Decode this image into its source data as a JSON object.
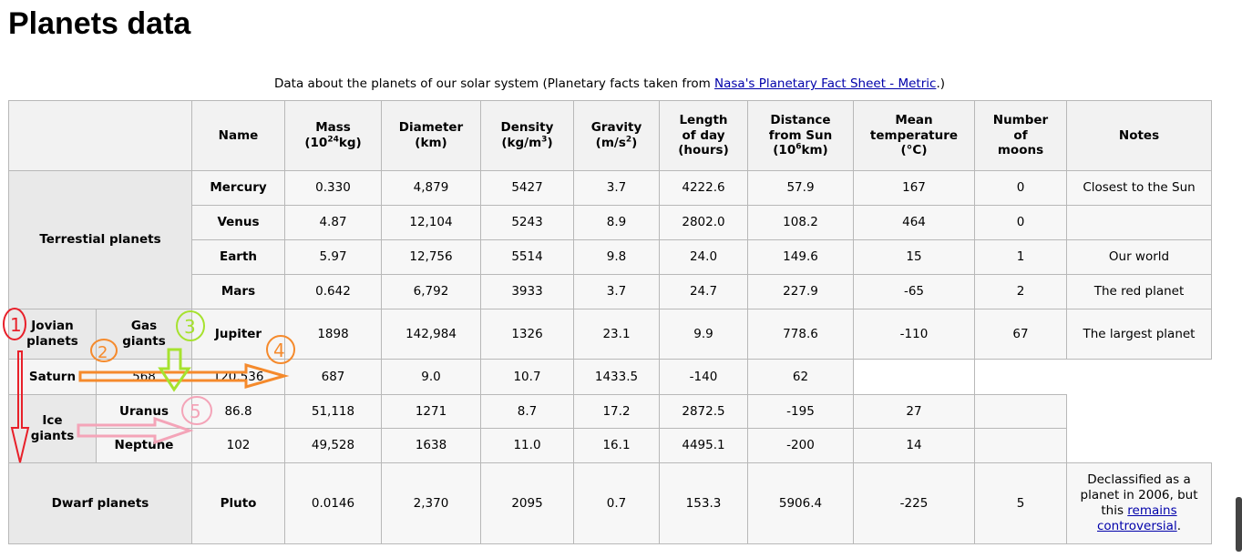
{
  "page": {
    "title": "Planets data",
    "caption_prefix": "Data about the planets of our solar system (Planetary facts taken from ",
    "caption_link": "Nasa's Planetary Fact Sheet - Metric",
    "caption_suffix": ".)"
  },
  "headers": {
    "name": "Name",
    "mass": "Mass",
    "mass_unit_a": "(10",
    "mass_unit_exp": "24",
    "mass_unit_b": "kg)",
    "diameter": "Diameter",
    "diameter_unit": "(km)",
    "density": "Density",
    "density_unit_a": "(kg/m",
    "density_unit_exp": "3",
    "density_unit_b": ")",
    "gravity": "Gravity",
    "gravity_unit_a": "(m/s",
    "gravity_unit_exp": "2",
    "gravity_unit_b": ")",
    "length_of_day_1": "Length",
    "length_of_day_2": "of day",
    "length_of_day_3": "(hours)",
    "distance_1": "Distance",
    "distance_2": "from Sun",
    "distance_unit_a": "(10",
    "distance_unit_exp": "6",
    "distance_unit_b": "km)",
    "mean_temp_1": "Mean",
    "mean_temp_2": "temperature",
    "mean_temp_3": "(°C)",
    "moons_1": "Number",
    "moons_2": "of",
    "moons_3": "moons",
    "notes": "Notes"
  },
  "groups": {
    "terrestrial": "Terrestial planets",
    "jovian_1": "Jovian",
    "jovian_2": "planets",
    "gas_1": "Gas",
    "gas_2": "giants",
    "ice_1": "Ice",
    "ice_2": "giants",
    "dwarf": "Dwarf planets"
  },
  "rows": {
    "mercury": {
      "name": "Mercury",
      "mass": "0.330",
      "diameter": "4,879",
      "density": "5427",
      "gravity": "3.7",
      "day": "4222.6",
      "distance": "57.9",
      "temp": "167",
      "moons": "0",
      "notes": "Closest to the Sun"
    },
    "venus": {
      "name": "Venus",
      "mass": "4.87",
      "diameter": "12,104",
      "density": "5243",
      "gravity": "8.9",
      "day": "2802.0",
      "distance": "108.2",
      "temp": "464",
      "moons": "0",
      "notes": ""
    },
    "earth": {
      "name": "Earth",
      "mass": "5.97",
      "diameter": "12,756",
      "density": "5514",
      "gravity": "9.8",
      "day": "24.0",
      "distance": "149.6",
      "temp": "15",
      "moons": "1",
      "notes": "Our world"
    },
    "mars": {
      "name": "Mars",
      "mass": "0.642",
      "diameter": "6,792",
      "density": "3933",
      "gravity": "3.7",
      "day": "24.7",
      "distance": "227.9",
      "temp": "-65",
      "moons": "2",
      "notes": "The red planet"
    },
    "jupiter": {
      "name": "Jupiter",
      "mass": "1898",
      "diameter": "142,984",
      "density": "1326",
      "gravity": "23.1",
      "day": "9.9",
      "distance": "778.6",
      "temp": "-110",
      "moons": "67",
      "notes": "The largest planet"
    },
    "saturn": {
      "name": "Saturn",
      "c1": "568",
      "c2": "120,536",
      "c3": "687",
      "c4": "9.0",
      "c5": "10.7",
      "c6": "1433.5",
      "c7": "-140",
      "c8": "62"
    },
    "uranus": {
      "name": "Uranus",
      "c1": "86.8",
      "c2": "51,118",
      "c3": "1271",
      "c4": "8.7",
      "c5": "17.2",
      "c6": "2872.5",
      "c7": "-195",
      "c8": "27"
    },
    "neptune": {
      "name": "Neptune",
      "c1": "102",
      "c2": "49,528",
      "c3": "1638",
      "c4": "11.0",
      "c5": "16.1",
      "c6": "4495.1",
      "c7": "-200",
      "c8": "14"
    },
    "pluto": {
      "name": "Pluto",
      "mass": "0.0146",
      "diameter": "2,370",
      "density": "2095",
      "gravity": "0.7",
      "day": "153.3",
      "distance": "5906.4",
      "temp": "-225",
      "moons": "5",
      "notes_a": "Declassified as a planet in 2006, but this ",
      "notes_link_1": "remains",
      "notes_link_2": "controversial",
      "notes_b": "."
    }
  },
  "annotations": {
    "n1": "1",
    "n2": "2",
    "n3": "3",
    "n4": "4",
    "n5": "5"
  },
  "colors": {
    "red": "#e8202a",
    "orange": "#f58a2c",
    "green": "#a6e22e",
    "pink": "#f4a4b8",
    "link": "#0000aa"
  }
}
